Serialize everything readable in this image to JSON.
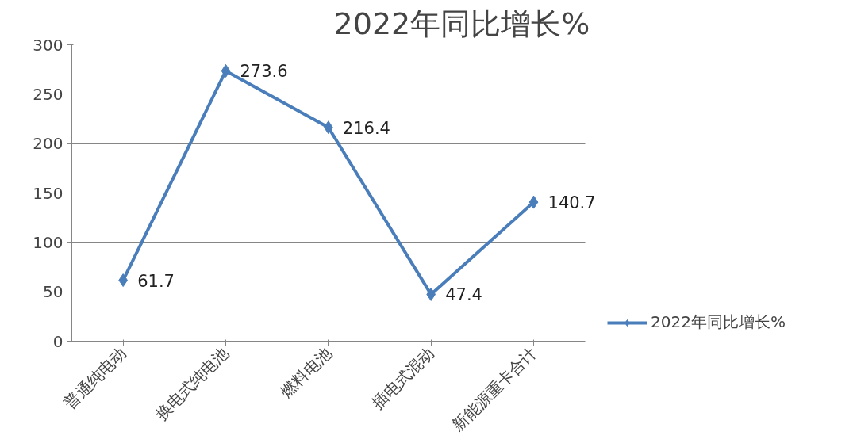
{
  "chart_data": {
    "type": "line",
    "title": "2022年同比增长%",
    "categories": [
      "普通纯电动",
      "换电式纯电池",
      "燃料电池",
      "插电式混动",
      "新能源重卡合计"
    ],
    "series": [
      {
        "name": "2022年同比增长%",
        "color": "#4a7ebb",
        "values": [
          61.7,
          273.6,
          216.4,
          47.4,
          140.7
        ]
      }
    ],
    "ylim": [
      0,
      300
    ],
    "yticks": [
      0,
      50,
      100,
      150,
      200,
      250,
      300
    ],
    "grid": "y",
    "legend": "right",
    "marker": "diamond",
    "line_style": "solid",
    "data_labels": true
  }
}
